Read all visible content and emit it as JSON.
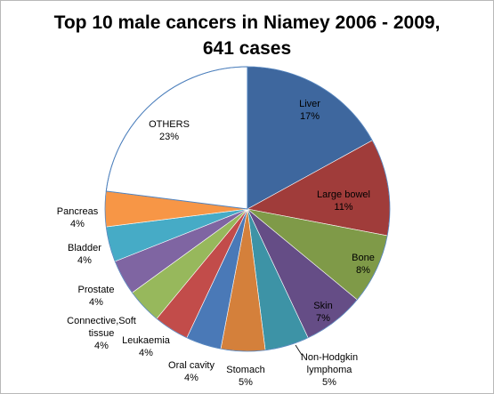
{
  "chart_data": {
    "type": "pie",
    "title_lines": [
      "Top 10 male cancers in Niamey 2006 - 2009,",
      "641 cases"
    ],
    "slices": [
      {
        "name": "Liver",
        "value": 17,
        "pct": "17%",
        "color": "#3e679e"
      },
      {
        "name": "Large bowel",
        "value": 11,
        "pct": "11%",
        "color": "#a03c3a"
      },
      {
        "name": "Bone",
        "value": 8,
        "pct": "8%",
        "color": "#7f9a48"
      },
      {
        "name": "Skin",
        "value": 7,
        "pct": "7%",
        "color": "#654d86"
      },
      {
        "name": "Non-Hodgkin lymphoma",
        "value": 5,
        "pct": "5%",
        "color": "#3d93a6"
      },
      {
        "name": "Stomach",
        "value": 5,
        "pct": "5%",
        "color": "#d4803b"
      },
      {
        "name": "Oral cavity",
        "value": 4,
        "pct": "4%",
        "color": "#4a79b7"
      },
      {
        "name": "Leukaemia",
        "value": 4,
        "pct": "4%",
        "color": "#c24c4a"
      },
      {
        "name": "Connective,Soft tissue",
        "value": 4,
        "pct": "4%",
        "color": "#97b85c"
      },
      {
        "name": "Prostate",
        "value": 4,
        "pct": "4%",
        "color": "#7f65a2"
      },
      {
        "name": "Bladder",
        "value": 4,
        "pct": "4%",
        "color": "#46abc6"
      },
      {
        "name": "Pancreas",
        "value": 4,
        "pct": "4%",
        "color": "#f79646"
      },
      {
        "name": "OTHERS",
        "value": 23,
        "pct": "23%",
        "color": "#ffffff"
      }
    ],
    "legend": "none",
    "border_color": "#4f81bd"
  }
}
